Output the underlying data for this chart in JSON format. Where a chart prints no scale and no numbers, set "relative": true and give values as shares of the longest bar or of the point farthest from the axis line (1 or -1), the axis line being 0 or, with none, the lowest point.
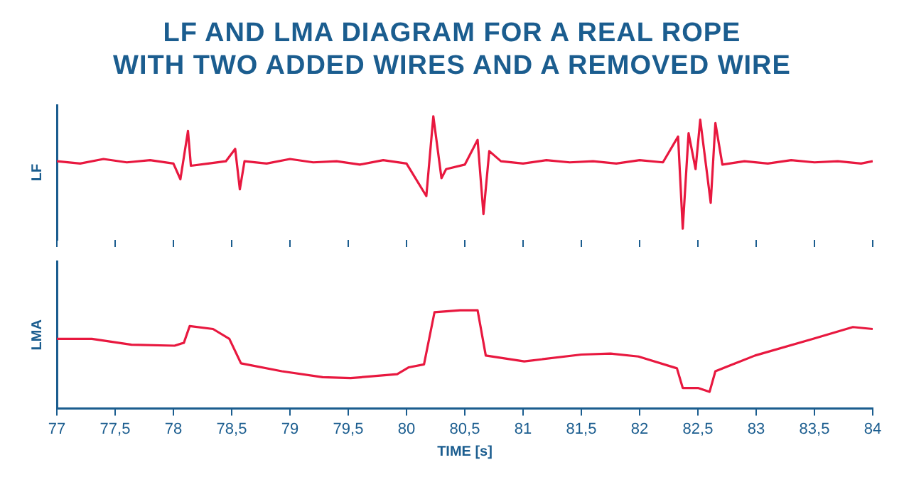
{
  "chart_data": [
    {
      "type": "line",
      "title": "LF AND LMA DIAGRAM FOR A REAL ROPE\nWITH TWO ADDED WIRES AND A REMOVED WIRE",
      "ylabel": "LF",
      "relative": true,
      "grid": false,
      "legend": false,
      "marker": "none",
      "tick_labels": false,
      "xlim": [
        77,
        84
      ],
      "xticks": [
        {
          "value": 77,
          "label": null
        },
        {
          "value": 77.5,
          "label": null
        },
        {
          "value": 78,
          "label": null
        },
        {
          "value": 78.5,
          "label": null
        },
        {
          "value": 79,
          "label": null
        },
        {
          "value": 79.5,
          "label": null
        },
        {
          "value": 80,
          "label": null
        },
        {
          "value": 80.5,
          "label": null
        },
        {
          "value": 81,
          "label": null
        },
        {
          "value": 81.5,
          "label": null
        },
        {
          "value": 82,
          "label": null
        },
        {
          "value": 82.5,
          "label": null
        },
        {
          "value": 83,
          "label": null
        },
        {
          "value": 83.5,
          "label": null
        },
        {
          "value": 84,
          "label": null
        }
      ],
      "series": [
        {
          "color": "#e8183f",
          "x": [
            77,
            77.2,
            77.4,
            77.6,
            77.8,
            78.0,
            78.06,
            78.125,
            78.15,
            78.3,
            78.45,
            78.53,
            78.57,
            78.61,
            78.8,
            79.0,
            79.2,
            79.4,
            79.6,
            79.8,
            80.0,
            80.17,
            80.23,
            80.3,
            80.34,
            80.5,
            80.61,
            80.66,
            80.71,
            80.81,
            81.0,
            81.2,
            81.4,
            81.6,
            81.8,
            82.0,
            82.2,
            82.33,
            82.37,
            82.42,
            82.48,
            82.52,
            82.57,
            82.61,
            82.65,
            82.71,
            82.9,
            83.1,
            83.3,
            83.5,
            83.7,
            83.9,
            84
          ],
          "values": [
            0.6,
            0.58,
            0.62,
            0.59,
            0.61,
            0.58,
            0.44,
            0.87,
            0.56,
            0.58,
            0.6,
            0.71,
            0.35,
            0.6,
            0.58,
            0.62,
            0.59,
            0.6,
            0.57,
            0.61,
            0.58,
            0.29,
            1,
            0.45,
            0.53,
            0.57,
            0.79,
            0.13,
            0.69,
            0.6,
            0.58,
            0.61,
            0.59,
            0.6,
            0.58,
            0.61,
            0.59,
            0.82,
            0,
            0.85,
            0.53,
            0.97,
            0.56,
            0.23,
            0.94,
            0.57,
            0.6,
            0.58,
            0.61,
            0.59,
            0.6,
            0.58,
            0.6
          ]
        }
      ]
    },
    {
      "type": "line",
      "ylabel": "LMA",
      "xlabel": "TIME [s]",
      "relative": true,
      "grid": false,
      "legend": false,
      "marker": "none",
      "tick_labels": "x",
      "xlim": [
        77,
        84
      ],
      "xticks": [
        77,
        {
          "value": 77.5,
          "label": "77,5"
        },
        78,
        {
          "value": 78.5,
          "label": "78,5"
        },
        79,
        {
          "value": 79.5,
          "label": "79,5"
        },
        80,
        {
          "value": 80.5,
          "label": "80,5"
        },
        81,
        {
          "value": 81.5,
          "label": "81,5"
        },
        82,
        {
          "value": 82.5,
          "label": "82,5"
        },
        83,
        {
          "value": 83.5,
          "label": "83,5"
        },
        84
      ],
      "series": [
        {
          "color": "#e8183f",
          "x": [
            77,
            77.3,
            77.64,
            78.01,
            78.09,
            78.14,
            78.34,
            78.48,
            78.58,
            78.93,
            79.28,
            79.52,
            79.92,
            80.02,
            80.15,
            80.24,
            80.46,
            80.61,
            80.68,
            81.01,
            81.5,
            81.75,
            81.99,
            82.32,
            82.37,
            82.5,
            82.6,
            82.65,
            82.99,
            83.49,
            83.83,
            84
          ],
          "values": [
            0.71,
            0.71,
            0.65,
            0.64,
            0.67,
            0.84,
            0.81,
            0.71,
            0.46,
            0.38,
            0.32,
            0.31,
            0.35,
            0.42,
            0.45,
            0.98,
            1,
            1,
            0.54,
            0.48,
            0.55,
            0.56,
            0.53,
            0.41,
            0.21,
            0.21,
            0.17,
            0.38,
            0.54,
            0.71,
            0.83,
            0.81
          ]
        }
      ]
    }
  ]
}
